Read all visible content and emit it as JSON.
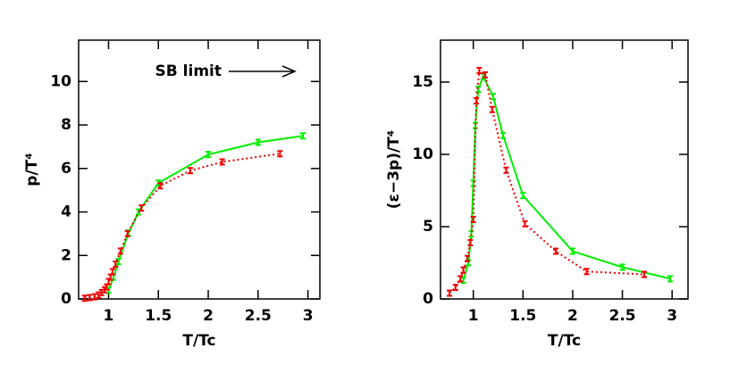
{
  "chart_data": [
    {
      "type": "line",
      "xlabel": "T/Tc",
      "ylabel": "p/T⁴",
      "annotation": "SB limit",
      "xlim": [
        0.7,
        3.12
      ],
      "ylim": [
        0,
        11.9
      ],
      "xticks": [
        1,
        1.5,
        2,
        2.5,
        3
      ],
      "yticks": [
        0,
        2,
        4,
        6,
        8,
        10
      ],
      "series": [
        {
          "color": "#00ee00",
          "line_style": "solid",
          "x": [
            1.0,
            1.05,
            1.1,
            1.2,
            1.3,
            1.5,
            2.0,
            2.5,
            2.95
          ],
          "values": [
            0.4,
            1.0,
            1.72,
            3.03,
            4.0,
            5.33,
            6.64,
            7.2,
            7.5
          ]
        },
        {
          "color": "#ee0000",
          "line_style": "dotted",
          "x": [
            0.76,
            0.81,
            0.86,
            0.9,
            0.93,
            0.96,
            0.98,
            1.0,
            1.02,
            1.04,
            1.07,
            1.12,
            1.19,
            1.33,
            1.52,
            1.82,
            2.14,
            2.72
          ],
          "values": [
            0.03,
            0.06,
            0.1,
            0.18,
            0.3,
            0.42,
            0.55,
            0.8,
            1.0,
            1.25,
            1.6,
            2.2,
            3.0,
            4.18,
            5.2,
            5.9,
            6.3,
            6.68
          ]
        }
      ]
    },
    {
      "type": "line",
      "xlabel": "T/Tc",
      "ylabel": "(ε−3p)/T⁴",
      "xlim": [
        0.67,
        3.16
      ],
      "ylim": [
        0,
        17.9
      ],
      "xticks": [
        1,
        1.5,
        2,
        2.5,
        3
      ],
      "yticks": [
        0,
        5,
        10,
        15
      ],
      "series": [
        {
          "color": "#00ee00",
          "line_style": "solid",
          "x": [
            0.9,
            0.95,
            0.98,
            1.0,
            1.02,
            1.05,
            1.1,
            1.2,
            1.3,
            1.5,
            2.0,
            2.5,
            2.98
          ],
          "values": [
            1.3,
            2.5,
            4.5,
            8.0,
            12.0,
            14.5,
            15.4,
            14.0,
            11.3,
            7.15,
            3.3,
            2.2,
            1.4
          ]
        },
        {
          "color": "#ee0000",
          "line_style": "dotted",
          "x": [
            0.76,
            0.82,
            0.87,
            0.9,
            0.94,
            0.97,
            1.0,
            1.03,
            1.06,
            1.12,
            1.19,
            1.33,
            1.52,
            1.83,
            2.14,
            2.72
          ],
          "values": [
            0.4,
            0.8,
            1.4,
            2.0,
            2.8,
            3.9,
            5.5,
            13.7,
            15.8,
            15.5,
            13.1,
            8.9,
            5.2,
            3.3,
            1.9,
            1.7
          ]
        }
      ]
    }
  ]
}
